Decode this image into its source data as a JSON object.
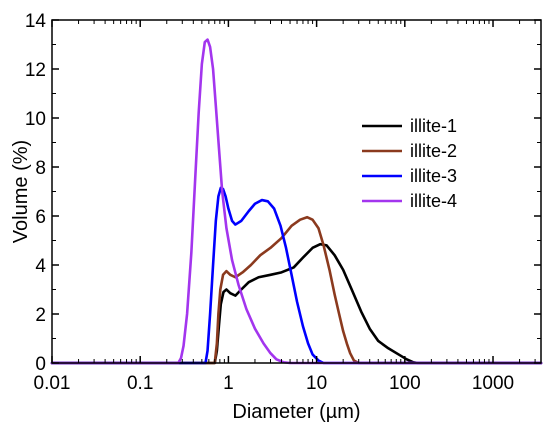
{
  "chart_data": {
    "type": "line",
    "xlabel": "Diameter (µm)",
    "ylabel": "Volume (%)",
    "xscale": "log",
    "xlim": [
      0.01,
      3500
    ],
    "ylim": [
      0,
      14
    ],
    "xticks": [
      0.01,
      0.1,
      1,
      10,
      100,
      1000
    ],
    "xtick_labels": [
      "0.01",
      "0.1",
      "1",
      "10",
      "100",
      "1000"
    ],
    "yticks": [
      0,
      2,
      4,
      6,
      8,
      10,
      12,
      14
    ],
    "ytick_labels": [
      "0",
      "2",
      "4",
      "6",
      "8",
      "10",
      "12",
      "14"
    ],
    "grid": false,
    "legend_position": "right",
    "series": [
      {
        "name": "illite-1",
        "color": "#000000",
        "points": [
          [
            0.01,
            0
          ],
          [
            0.7,
            0
          ],
          [
            0.74,
            0.5
          ],
          [
            0.78,
            1.5
          ],
          [
            0.82,
            2.4
          ],
          [
            0.88,
            2.9
          ],
          [
            0.95,
            3.0
          ],
          [
            1.05,
            2.85
          ],
          [
            1.2,
            2.75
          ],
          [
            1.4,
            3.0
          ],
          [
            1.7,
            3.3
          ],
          [
            2.2,
            3.5
          ],
          [
            3.0,
            3.6
          ],
          [
            4.0,
            3.7
          ],
          [
            5.5,
            3.9
          ],
          [
            7.0,
            4.3
          ],
          [
            9.0,
            4.7
          ],
          [
            11.0,
            4.85
          ],
          [
            13.0,
            4.8
          ],
          [
            16.0,
            4.4
          ],
          [
            20.0,
            3.8
          ],
          [
            25.0,
            3.0
          ],
          [
            32.0,
            2.1
          ],
          [
            40.0,
            1.4
          ],
          [
            50.0,
            0.9
          ],
          [
            65.0,
            0.6
          ],
          [
            85.0,
            0.35
          ],
          [
            105.0,
            0.15
          ],
          [
            125.0,
            0.03
          ],
          [
            140.0,
            0
          ],
          [
            3500,
            0
          ]
        ]
      },
      {
        "name": "illite-2",
        "color": "#8b3a1e",
        "points": [
          [
            0.01,
            0
          ],
          [
            0.7,
            0
          ],
          [
            0.74,
            0.8
          ],
          [
            0.77,
            2.0
          ],
          [
            0.81,
            3.0
          ],
          [
            0.87,
            3.6
          ],
          [
            0.95,
            3.75
          ],
          [
            1.05,
            3.6
          ],
          [
            1.2,
            3.5
          ],
          [
            1.45,
            3.7
          ],
          [
            1.8,
            4.0
          ],
          [
            2.3,
            4.4
          ],
          [
            3.0,
            4.7
          ],
          [
            4.0,
            5.1
          ],
          [
            5.2,
            5.6
          ],
          [
            6.5,
            5.85
          ],
          [
            7.8,
            5.95
          ],
          [
            9.0,
            5.85
          ],
          [
            10.5,
            5.5
          ],
          [
            12.0,
            4.8
          ],
          [
            14.0,
            3.8
          ],
          [
            16.0,
            2.8
          ],
          [
            18.0,
            2.0
          ],
          [
            20.0,
            1.3
          ],
          [
            22.0,
            0.8
          ],
          [
            24.0,
            0.4
          ],
          [
            26.5,
            0.1
          ],
          [
            30.0,
            0
          ],
          [
            3500,
            0
          ]
        ]
      },
      {
        "name": "illite-3",
        "color": "#0000ff",
        "points": [
          [
            0.01,
            0
          ],
          [
            0.55,
            0
          ],
          [
            0.58,
            0.5
          ],
          [
            0.62,
            2.0
          ],
          [
            0.67,
            4.0
          ],
          [
            0.72,
            5.8
          ],
          [
            0.77,
            6.8
          ],
          [
            0.82,
            7.15
          ],
          [
            0.87,
            7.1
          ],
          [
            0.93,
            6.8
          ],
          [
            1.0,
            6.3
          ],
          [
            1.1,
            5.8
          ],
          [
            1.2,
            5.65
          ],
          [
            1.4,
            5.8
          ],
          [
            1.7,
            6.2
          ],
          [
            2.0,
            6.5
          ],
          [
            2.4,
            6.65
          ],
          [
            2.8,
            6.6
          ],
          [
            3.3,
            6.3
          ],
          [
            3.9,
            5.6
          ],
          [
            4.5,
            4.7
          ],
          [
            5.2,
            3.6
          ],
          [
            6.0,
            2.5
          ],
          [
            7.0,
            1.5
          ],
          [
            8.0,
            0.8
          ],
          [
            9.0,
            0.35
          ],
          [
            10.5,
            0.1
          ],
          [
            12.0,
            0
          ],
          [
            3500,
            0
          ]
        ]
      },
      {
        "name": "illite-4",
        "color": "#a335ee",
        "points": [
          [
            0.01,
            0
          ],
          [
            0.27,
            0
          ],
          [
            0.29,
            0.2
          ],
          [
            0.31,
            0.7
          ],
          [
            0.34,
            2.0
          ],
          [
            0.38,
            4.5
          ],
          [
            0.42,
            7.5
          ],
          [
            0.46,
            10.2
          ],
          [
            0.5,
            12.2
          ],
          [
            0.54,
            13.1
          ],
          [
            0.58,
            13.2
          ],
          [
            0.62,
            12.9
          ],
          [
            0.67,
            12.0
          ],
          [
            0.72,
            10.5
          ],
          [
            0.78,
            8.8
          ],
          [
            0.85,
            7.0
          ],
          [
            0.95,
            5.5
          ],
          [
            1.1,
            4.2
          ],
          [
            1.3,
            3.2
          ],
          [
            1.6,
            2.2
          ],
          [
            2.0,
            1.4
          ],
          [
            2.5,
            0.8
          ],
          [
            3.0,
            0.4
          ],
          [
            3.5,
            0.15
          ],
          [
            4.2,
            0.03
          ],
          [
            5.0,
            0
          ],
          [
            3500,
            0
          ]
        ]
      }
    ]
  }
}
